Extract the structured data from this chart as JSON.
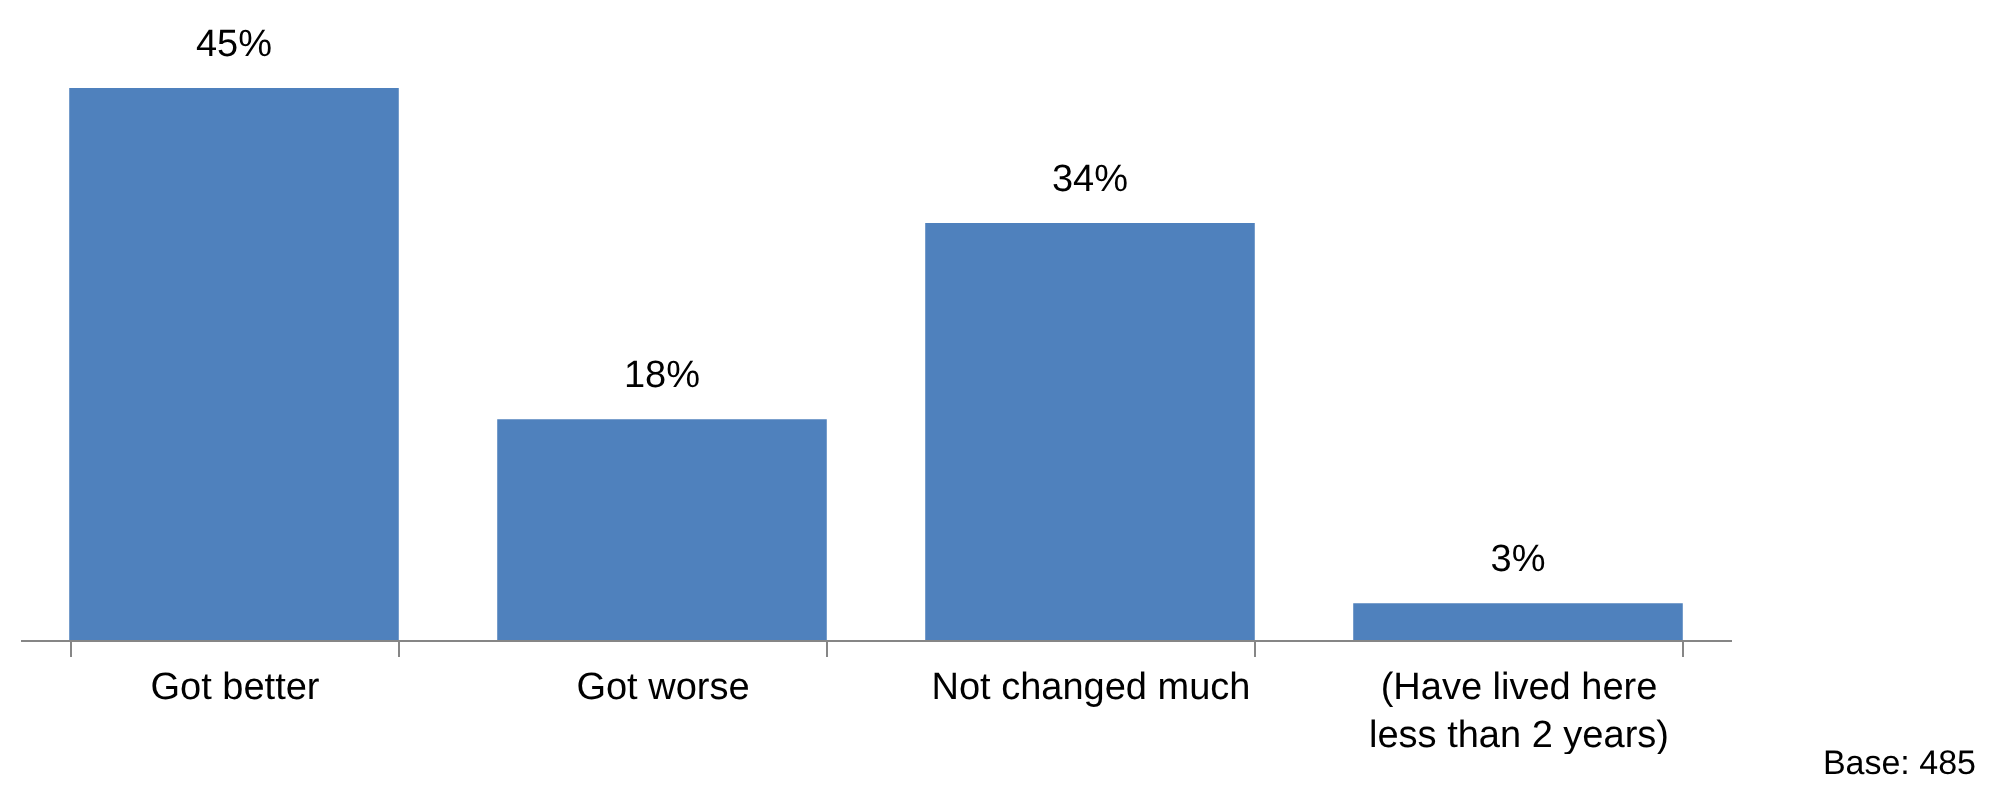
{
  "chart_data": {
    "type": "bar",
    "categories": [
      "Got better",
      "Got worse",
      "Not changed much",
      "(Have lived here less than 2 years)"
    ],
    "values": [
      45,
      18,
      34,
      3
    ],
    "value_labels": [
      "45%",
      "18%",
      "34%",
      "3%"
    ],
    "color": "#4f81bd",
    "annotations": [
      "Base: 485"
    ]
  }
}
